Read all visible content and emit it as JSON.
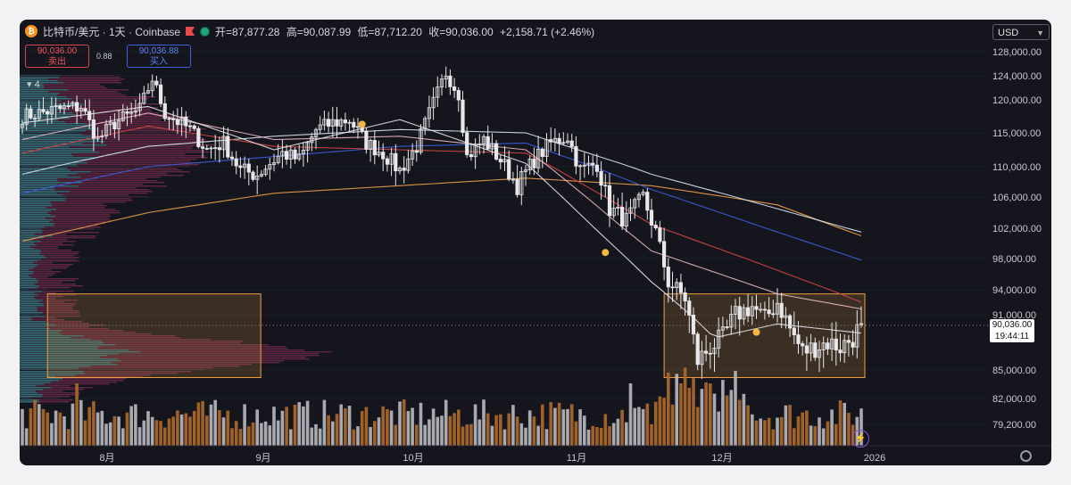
{
  "header": {
    "coin_glyph": "₿",
    "title": "比特币/美元 · 1天 · Coinbase",
    "open": "开=87,877.28",
    "high": "高=90,087.99",
    "low": "低=87,712.20",
    "close": "收=90,036.00",
    "change": "+2,158.71 (+2.46%)"
  },
  "trade": {
    "sell_price": "90,036.00",
    "sell_label": "卖出",
    "spread": "0.88",
    "buy_price": "90,036.88",
    "buy_label": "买入"
  },
  "indicator_count": "4",
  "currency": "USD",
  "price_tag": {
    "price": "90,036.00",
    "countdown": "19:44:11"
  },
  "colors": {
    "up": "#e8e8ea",
    "down": "#e8e8ea",
    "vol_up": "#b9b9c0",
    "vol_down": "#b06a2a",
    "box": "#f0a040"
  },
  "chart_data": {
    "type": "candlestick",
    "y_axis_ticks": [
      "128,000.00",
      "124,000.00",
      "120,000.00",
      "115,000.00",
      "110,000.00",
      "106,000.00",
      "102,000.00",
      "98,000.00",
      "94,000.00",
      "91,000.00",
      "85,000.00",
      "82,000.00",
      "79,200.00"
    ],
    "x_axis_labels": [
      "8月",
      "9月",
      "10月",
      "11月",
      "12月",
      "2026"
    ],
    "last_price": 90036,
    "anchors": [
      {
        "i": 0,
        "p": 117500
      },
      {
        "i": 8,
        "p": 118500
      },
      {
        "i": 14,
        "p": 119000
      },
      {
        "i": 18,
        "p": 114000
      },
      {
        "i": 22,
        "p": 116500
      },
      {
        "i": 28,
        "p": 118500
      },
      {
        "i": 31,
        "p": 123500
      },
      {
        "i": 34,
        "p": 118000
      },
      {
        "i": 40,
        "p": 115500
      },
      {
        "i": 44,
        "p": 112500
      },
      {
        "i": 48,
        "p": 113500
      },
      {
        "i": 52,
        "p": 109500
      },
      {
        "i": 56,
        "p": 109000
      },
      {
        "i": 62,
        "p": 112000
      },
      {
        "i": 66,
        "p": 111000
      },
      {
        "i": 70,
        "p": 115500
      },
      {
        "i": 74,
        "p": 116500
      },
      {
        "i": 78,
        "p": 117000
      },
      {
        "i": 82,
        "p": 113500
      },
      {
        "i": 86,
        "p": 112000
      },
      {
        "i": 90,
        "p": 109500
      },
      {
        "i": 94,
        "p": 113000
      },
      {
        "i": 98,
        "p": 119500
      },
      {
        "i": 101,
        "p": 124500
      },
      {
        "i": 104,
        "p": 121000
      },
      {
        "i": 106,
        "p": 111500
      },
      {
        "i": 110,
        "p": 114000
      },
      {
        "i": 114,
        "p": 111000
      },
      {
        "i": 118,
        "p": 107500
      },
      {
        "i": 122,
        "p": 111000
      },
      {
        "i": 126,
        "p": 113500
      },
      {
        "i": 130,
        "p": 114500
      },
      {
        "i": 133,
        "p": 109500
      },
      {
        "i": 137,
        "p": 110500
      },
      {
        "i": 140,
        "p": 104500
      },
      {
        "i": 144,
        "p": 103000
      },
      {
        "i": 148,
        "p": 106000
      },
      {
        "i": 151,
        "p": 101500
      },
      {
        "i": 154,
        "p": 95000
      },
      {
        "i": 158,
        "p": 93000
      },
      {
        "i": 161,
        "p": 86000
      },
      {
        "i": 164,
        "p": 87500
      },
      {
        "i": 167,
        "p": 88500
      },
      {
        "i": 170,
        "p": 91000
      },
      {
        "i": 174,
        "p": 92000
      },
      {
        "i": 177,
        "p": 90500
      },
      {
        "i": 180,
        "p": 92500
      },
      {
        "i": 183,
        "p": 89500
      },
      {
        "i": 186,
        "p": 87000
      },
      {
        "i": 189,
        "p": 87500
      },
      {
        "i": 192,
        "p": 88000
      },
      {
        "i": 195,
        "p": 87500
      },
      {
        "i": 198,
        "p": 88500
      },
      {
        "i": 200,
        "p": 90036
      }
    ],
    "ma_lines": [
      {
        "color": "#f0a14a",
        "pts": [
          [
            0,
            100300
          ],
          [
            30,
            104000
          ],
          [
            60,
            106500
          ],
          [
            90,
            107500
          ],
          [
            120,
            108500
          ],
          [
            150,
            107500
          ],
          [
            180,
            105000
          ],
          [
            200,
            101000
          ]
        ]
      },
      {
        "color": "#d9e6f2",
        "pts": [
          [
            0,
            109000
          ],
          [
            30,
            113000
          ],
          [
            60,
            114500
          ],
          [
            90,
            115500
          ],
          [
            120,
            115000
          ],
          [
            150,
            109000
          ],
          [
            180,
            104500
          ],
          [
            200,
            101500
          ]
        ]
      },
      {
        "color": "#3d5fe0",
        "pts": [
          [
            0,
            106500
          ],
          [
            30,
            110000
          ],
          [
            60,
            111500
          ],
          [
            90,
            113000
          ],
          [
            120,
            113500
          ],
          [
            150,
            107000
          ],
          [
            180,
            101500
          ],
          [
            200,
            97800
          ]
        ]
      },
      {
        "color": "#d84646",
        "pts": [
          [
            0,
            112000
          ],
          [
            30,
            116000
          ],
          [
            60,
            113000
          ],
          [
            90,
            112500
          ],
          [
            120,
            112000
          ],
          [
            150,
            102500
          ],
          [
            180,
            96500
          ],
          [
            200,
            92500
          ]
        ]
      },
      {
        "color": "#e8b8c4",
        "pts": [
          [
            0,
            114000
          ],
          [
            30,
            118000
          ],
          [
            60,
            114000
          ],
          [
            90,
            114500
          ],
          [
            120,
            112500
          ],
          [
            150,
            99000
          ],
          [
            180,
            93500
          ],
          [
            200,
            91700
          ]
        ]
      },
      {
        "color": "#e8e8ea",
        "pts": [
          [
            0,
            116500
          ],
          [
            30,
            119000
          ],
          [
            60,
            112500
          ],
          [
            90,
            117000
          ],
          [
            120,
            110500
          ],
          [
            150,
            95000
          ],
          [
            165,
            88500
          ],
          [
            180,
            90000
          ],
          [
            200,
            89000
          ]
        ]
      }
    ],
    "zones": [
      {
        "i0": 6,
        "i1": 56,
        "p0": 93500,
        "p1": 84200
      },
      {
        "i0": 153,
        "i1": 200,
        "p0": 93500,
        "p1": 84200
      }
    ],
    "markers": [
      {
        "i": 81,
        "p": 116300
      },
      {
        "i": 139,
        "p": 98800
      },
      {
        "i": 175,
        "p": 89100
      }
    ]
  }
}
